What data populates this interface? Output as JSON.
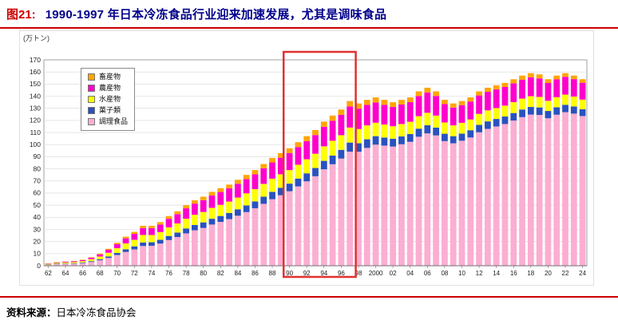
{
  "header": {
    "tag": "图21:",
    "title": "1990-1997 年日本冷冻食品行业迎来加速发展，尤其是调味食品"
  },
  "footer": {
    "label": "资料来源：",
    "source": "日本冷冻食品协会"
  },
  "colors": {
    "accent_red": "#CC0000",
    "title_navy": "#00008B",
    "highlight_red": "#E03131"
  },
  "chart_data": {
    "type": "bar",
    "stacked": true,
    "unit_label": "(万トン)",
    "ylim": [
      0,
      170
    ],
    "ytick_step": 10,
    "start_year": 1962,
    "end_year": 2024,
    "xtick_labels": [
      "62",
      "64",
      "66",
      "68",
      "70",
      "72",
      "74",
      "76",
      "78",
      "80",
      "82",
      "84",
      "86",
      "88",
      "90",
      "92",
      "94",
      "96",
      "98",
      "2000",
      "02",
      "04",
      "06",
      "08",
      "10",
      "12",
      "14",
      "16",
      "18",
      "20",
      "22",
      "24"
    ],
    "legend_position": "top-left-inside",
    "grid": true,
    "highlight": {
      "from_year": 1990,
      "to_year": 1997,
      "color": "#E03131"
    },
    "series": [
      {
        "name": "調理食品",
        "key": "prepared-foods",
        "color": "#FBAED2",
        "values": [
          0.8,
          1.3,
          1.6,
          1.7,
          2.2,
          3.1,
          4.5,
          6.4,
          8.9,
          11.4,
          13.5,
          16.3,
          16.5,
          18.3,
          21.2,
          23.7,
          26.7,
          29.3,
          31.2,
          34.0,
          36.2,
          38.5,
          41.3,
          44.3,
          47.5,
          51.1,
          54.9,
          58.2,
          61.5,
          65.5,
          69.7,
          73.9,
          79.6,
          83.8,
          88.5,
          94.2,
          94.1,
          97.3,
          100.0,
          99.2,
          98.4,
          100.3,
          102.3,
          106.5,
          109.3,
          107.6,
          102.9,
          101.1,
          103.2,
          105.9,
          110.2,
          113.0,
          115.0,
          117.0,
          119.9,
          122.7,
          124.8,
          124.5,
          121.8,
          124.7,
          126.8,
          125.6,
          123.6
        ]
      },
      {
        "name": "菓子類",
        "key": "confectionery",
        "color": "#2A52BE",
        "values": [
          0.2,
          0.3,
          0.3,
          0.4,
          0.5,
          0.7,
          0.9,
          1.3,
          1.7,
          2.2,
          2.5,
          2.9,
          2.9,
          3.1,
          3.4,
          3.7,
          4.1,
          4.4,
          4.6,
          4.8,
          4.9,
          5.1,
          5.3,
          5.5,
          5.6,
          5.9,
          6.1,
          6.2,
          6.3,
          6.5,
          6.6,
          6.8,
          7.0,
          7.2,
          7.2,
          7.5,
          7.1,
          7.1,
          7.0,
          6.7,
          6.5,
          6.5,
          6.5,
          6.7,
          6.7,
          6.5,
          6.1,
          5.9,
          5.9,
          6.0,
          6.1,
          6.2,
          6.2,
          6.2,
          6.2,
          6.3,
          6.3,
          6.2,
          6.0,
          6.1,
          6.1,
          5.9,
          5.7
        ]
      },
      {
        "name": "水産物",
        "key": "marine-products",
        "color": "#FFFF00",
        "values": [
          0.5,
          0.7,
          0.8,
          0.9,
          1.1,
          1.6,
          2.2,
          3.0,
          3.9,
          4.8,
          5.4,
          6.2,
          6.0,
          6.4,
          7.1,
          7.5,
          8.0,
          8.4,
          8.6,
          9.0,
          9.2,
          9.4,
          9.7,
          10.0,
          10.2,
          10.6,
          10.9,
          11.1,
          11.2,
          11.4,
          11.6,
          11.8,
          12.0,
          12.2,
          12.1,
          12.4,
          11.7,
          11.5,
          11.1,
          10.7,
          10.3,
          10.2,
          10.1,
          10.3,
          10.3,
          9.9,
          9.3,
          8.9,
          8.9,
          8.9,
          9.1,
          9.1,
          9.0,
          9.0,
          9.0,
          9.0,
          8.9,
          8.7,
          8.4,
          8.4,
          8.4,
          8.2,
          7.9
        ]
      },
      {
        "name": "農産物",
        "key": "agricultural-products",
        "color": "#FF00CC",
        "values": [
          0.4,
          0.5,
          0.6,
          0.7,
          0.9,
          1.2,
          1.8,
          2.5,
          3.3,
          4.2,
          4.9,
          5.7,
          5.7,
          6.2,
          7.1,
          7.7,
          8.6,
          9.2,
          9.7,
          10.2,
          10.6,
          10.9,
          11.4,
          11.8,
          12.2,
          12.8,
          13.4,
          13.7,
          14.1,
          14.6,
          15.0,
          15.4,
          16.1,
          16.5,
          16.8,
          17.4,
          16.8,
          16.9,
          16.7,
          16.3,
          15.9,
          16.1,
          16.2,
          16.6,
          16.8,
          16.2,
          15.2,
          14.7,
          14.6,
          14.8,
          15.2,
          15.3,
          15.4,
          15.4,
          15.5,
          15.6,
          15.6,
          15.3,
          14.7,
          14.8,
          14.7,
          14.4,
          13.9
        ]
      },
      {
        "name": "畜産物",
        "key": "livestock-products",
        "color": "#FFA500",
        "values": [
          0.1,
          0.2,
          0.2,
          0.3,
          0.3,
          0.4,
          0.6,
          0.8,
          1.2,
          1.4,
          1.7,
          1.9,
          1.9,
          2.0,
          2.2,
          2.4,
          2.6,
          2.7,
          2.9,
          3.0,
          3.1,
          3.1,
          3.3,
          3.4,
          3.5,
          3.6,
          3.7,
          3.8,
          3.9,
          4.0,
          4.1,
          4.1,
          4.3,
          4.3,
          4.4,
          4.5,
          4.3,
          4.2,
          4.2,
          4.1,
          3.9,
          3.9,
          3.9,
          3.9,
          3.9,
          3.8,
          3.5,
          3.4,
          3.4,
          3.4,
          3.4,
          3.4,
          3.4,
          3.4,
          3.4,
          3.4,
          3.4,
          3.3,
          3.1,
          3.0,
          3.0,
          2.9,
          2.9
        ]
      }
    ]
  }
}
